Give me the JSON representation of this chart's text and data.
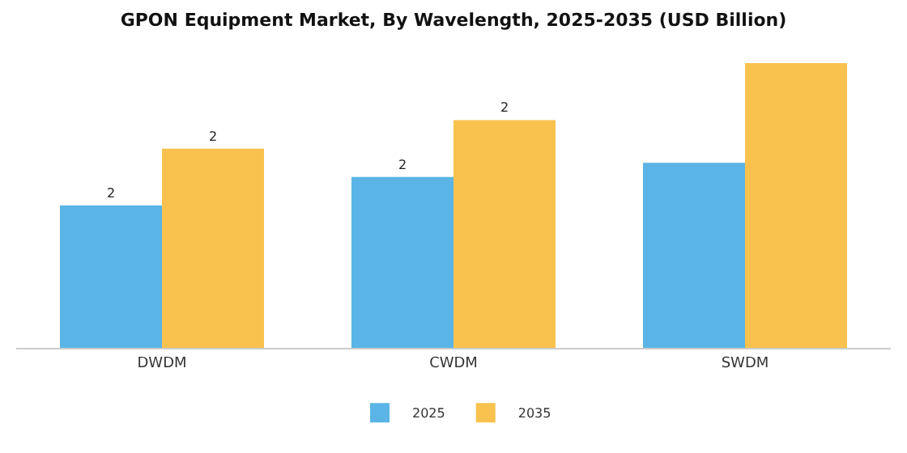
{
  "chart_data": {
    "type": "bar",
    "title": "GPON Equipment Market, By Wavelength, 2025-2035 (USD Billion)",
    "categories": [
      "DWDM",
      "CWDM",
      "SWDM"
    ],
    "series": [
      {
        "name": "2025",
        "color": "#5ab4e5",
        "values": [
          1.5,
          1.8,
          1.95
        ],
        "value_labels": [
          "2",
          "2",
          null
        ]
      },
      {
        "name": "2035",
        "color": "#f9c24e",
        "values": [
          2.1,
          2.4,
          3.0
        ],
        "value_labels": [
          "2",
          "2",
          null
        ]
      }
    ],
    "legend": "bottom",
    "grid": false
  }
}
